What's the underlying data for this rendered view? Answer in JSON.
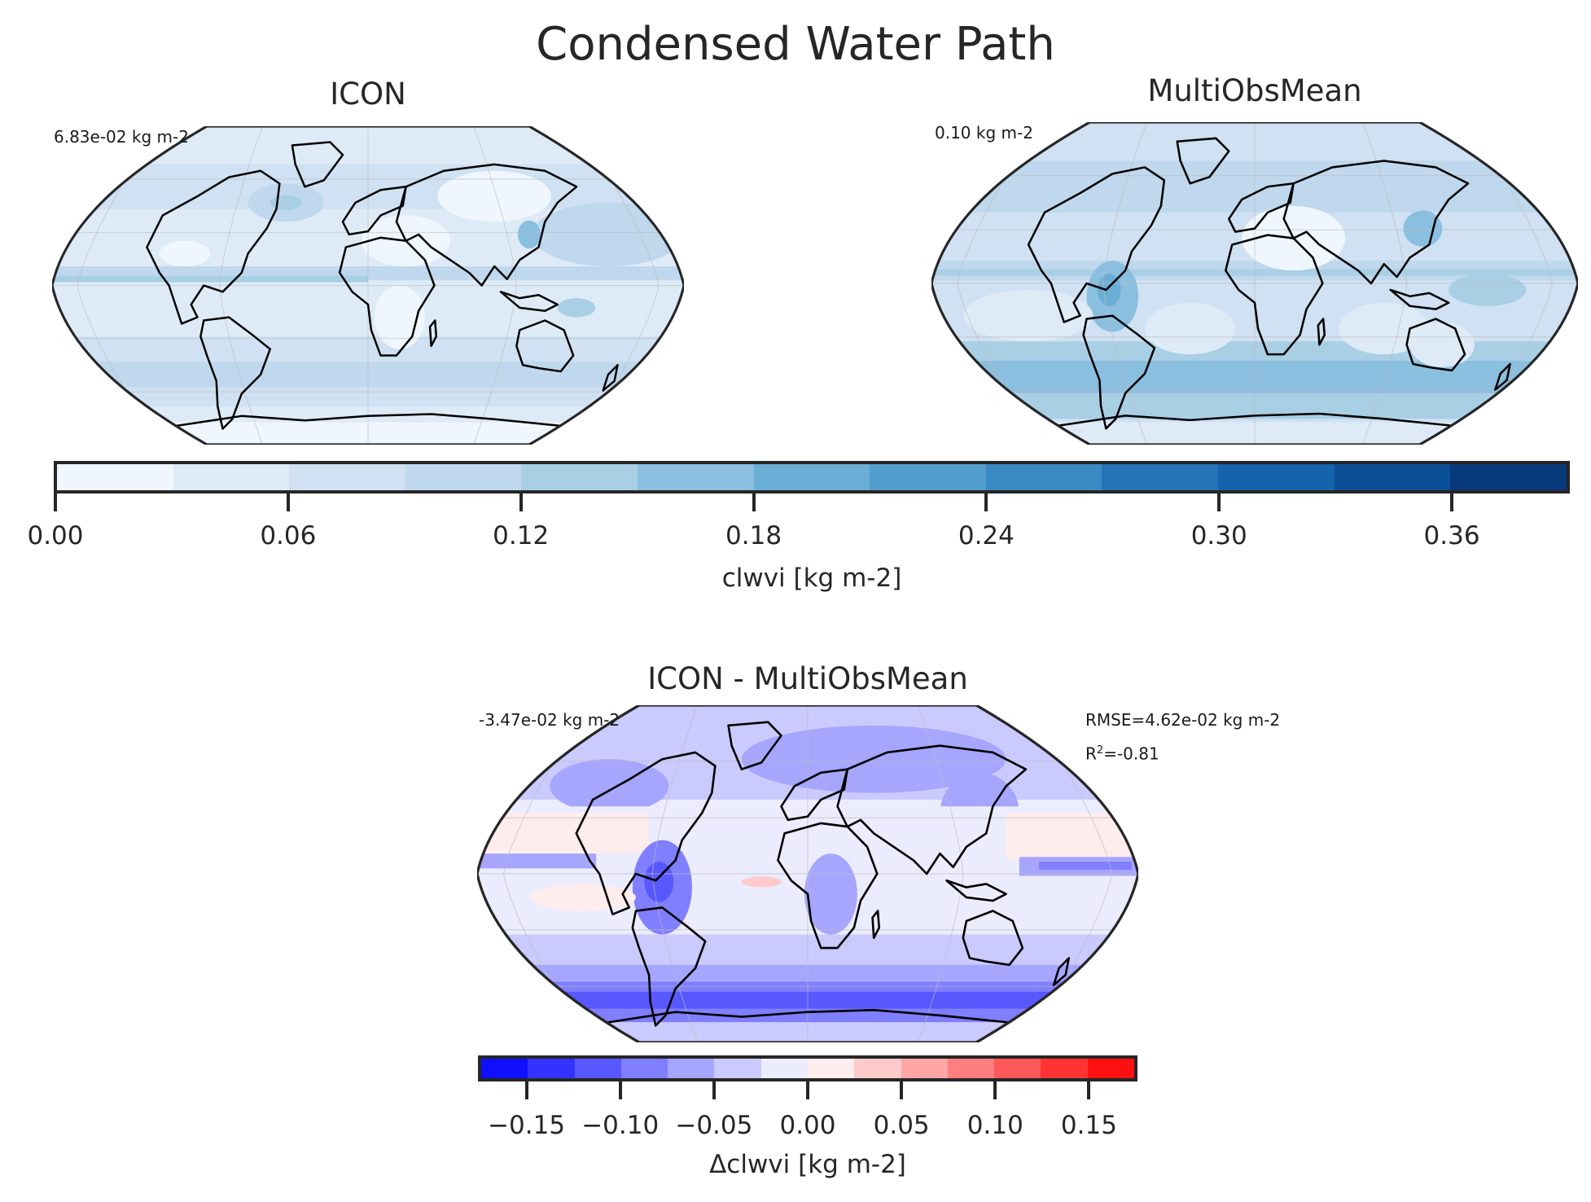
{
  "figure": {
    "suptitle": "Condensed Water Path"
  },
  "panels": {
    "model": {
      "title": "ICON",
      "global_mean": "6.83e-02 kg m-2"
    },
    "reference": {
      "title": "MultiObsMean",
      "global_mean": "0.10 kg m-2"
    },
    "bias": {
      "title": "ICON - MultiObsMean",
      "global_mean": "-3.47e-02 kg m-2",
      "rmse": "RMSE=4.62e-02 kg m-2",
      "r2_prefix": "R",
      "r2_sup": "2",
      "r2_value": "=-0.81"
    }
  },
  "colorbars": {
    "absolute": {
      "label": "clwvi [kg m-2]",
      "ticks": [
        "0.00",
        "0.06",
        "0.12",
        "0.18",
        "0.24",
        "0.30",
        "0.36"
      ],
      "colors": [
        "#eff6fd",
        "#deebf7",
        "#cfe1f2",
        "#bfd8ed",
        "#a9cfe5",
        "#8bbfdf",
        "#6aaed6",
        "#539ecd",
        "#3a8ac3",
        "#2474b7",
        "#1563aa",
        "#0a4f97",
        "#08397a"
      ]
    },
    "difference": {
      "label": "Δclwvi [kg m-2]",
      "ticks": [
        "−0.15",
        "−0.10",
        "−0.05",
        "0.00",
        "0.05",
        "0.10",
        "0.15"
      ],
      "colors": [
        "#1010ff",
        "#3333ff",
        "#5858ff",
        "#7f7fff",
        "#a6a6ff",
        "#cacaff",
        "#ececff",
        "#ffecec",
        "#ffcaca",
        "#ffa6a6",
        "#ff7f7f",
        "#ff5858",
        "#ff3333",
        "#ff1010"
      ]
    }
  },
  "chart_data": [
    {
      "type": "heatmap",
      "title": "ICON",
      "projection": "Robinson (global map)",
      "variable": "clwvi",
      "units": "kg m-2",
      "annotation": "6.83e-02 kg m-2",
      "global_mean": 0.0683,
      "colorbar": {
        "label": "clwvi [kg m-2]",
        "vmin": 0.0,
        "vmax": 0.39,
        "levels_step": 0.03,
        "ticks": [
          0.0,
          0.06,
          0.12,
          0.18,
          0.24,
          0.3,
          0.36
        ],
        "cmap": "Blues"
      },
      "description": "Mostly light values 0.0-0.09; higher values along ITCZ, storm tracks in mid-latitudes, East Asia/China maximum ~0.15"
    },
    {
      "type": "heatmap",
      "title": "MultiObsMean",
      "projection": "Robinson (global map)",
      "variable": "clwvi",
      "units": "kg m-2",
      "annotation": "0.10 kg m-2",
      "global_mean": 0.1,
      "colorbar": {
        "label": "clwvi [kg m-2]",
        "vmin": 0.0,
        "vmax": 0.39,
        "levels_step": 0.03,
        "ticks": [
          0.0,
          0.06,
          0.12,
          0.18,
          0.24,
          0.3,
          0.36
        ],
        "cmap": "Blues"
      },
      "description": "Higher values in Southern Ocean storm track (~0.15-0.18), ITCZ, Amazon (~0.18), East China; low over Sahara and subtropical oceans"
    },
    {
      "type": "heatmap",
      "title": "ICON - MultiObsMean",
      "projection": "Robinson (global map)",
      "variable": "Δclwvi",
      "units": "kg m-2",
      "annotation": "-3.47e-02 kg m-2",
      "global_mean_bias": -0.0347,
      "rmse": 0.0462,
      "r2": -0.81,
      "colorbar": {
        "label": "Δclwvi [kg m-2]",
        "vmin": -0.175,
        "vmax": 0.175,
        "levels_step": 0.025,
        "ticks": [
          -0.15,
          -0.1,
          -0.05,
          0.0,
          0.05,
          0.1,
          0.15
        ],
        "cmap": "bwr"
      },
      "description": "Predominantly negative bias; strongest negative over Southern Ocean (~-0.10 to -0.15), Amazon, N. Eurasia; small positive bias in subtropical stratocumulus regions"
    }
  ]
}
